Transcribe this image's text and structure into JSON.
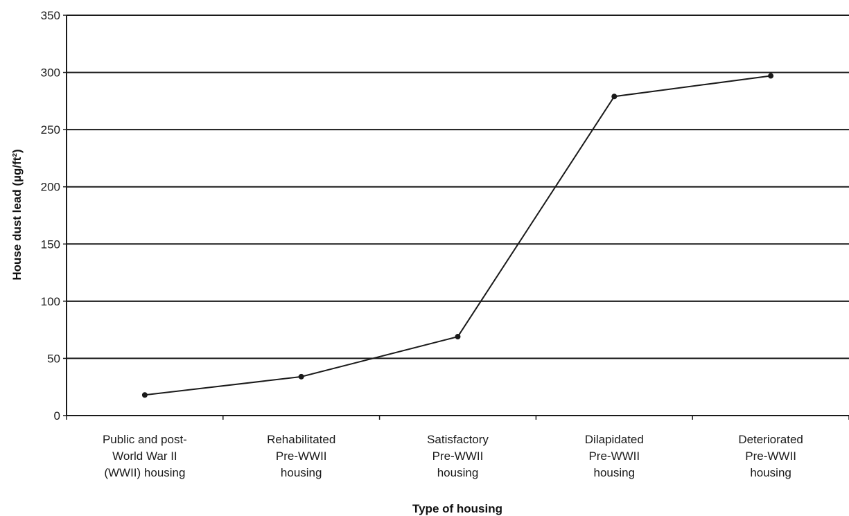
{
  "chart_data": {
    "type": "line",
    "title": "",
    "xlabel": "Type of housing",
    "ylabel": "House dust lead (µg/ft²)",
    "ylim": [
      0,
      350
    ],
    "yticks": [
      0,
      50,
      100,
      150,
      200,
      250,
      300,
      350
    ],
    "grid": true,
    "categories": [
      [
        "Public and post-",
        "World War II",
        "(WWII) housing"
      ],
      [
        "Rehabilitated",
        "Pre-WWII",
        "housing"
      ],
      [
        "Satisfactory",
        "Pre-WWII",
        "housing"
      ],
      [
        "Dilapidated",
        "Pre-WWII",
        "housing"
      ],
      [
        "Deteriorated",
        "Pre-WWII",
        "housing"
      ]
    ],
    "series": [
      {
        "values": [
          18,
          34,
          69,
          279,
          297
        ]
      }
    ]
  }
}
